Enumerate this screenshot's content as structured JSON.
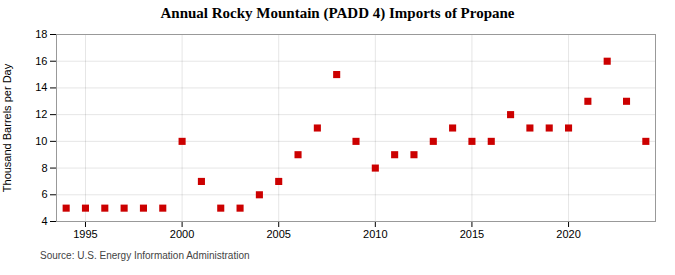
{
  "chart_data": {
    "type": "scatter",
    "title": "Annual Rocky Mountain (PADD 4) Imports of Propane",
    "ylabel": "Thousand Barrels per Day",
    "source": "Source: U.S. Energy Information Administration",
    "x": [
      1994,
      1995,
      1996,
      1997,
      1998,
      1999,
      2000,
      2001,
      2002,
      2003,
      2004,
      2005,
      2006,
      2007,
      2008,
      2009,
      2010,
      2011,
      2012,
      2013,
      2014,
      2015,
      2016,
      2017,
      2018,
      2019,
      2020,
      2021,
      2022,
      2023,
      2024
    ],
    "values": [
      5,
      5,
      5,
      5,
      5,
      5,
      10,
      7,
      5,
      5,
      6,
      7,
      9,
      11,
      15,
      10,
      8,
      9,
      9,
      10,
      11,
      10,
      10,
      12,
      11,
      11,
      11,
      13,
      16,
      13,
      10
    ],
    "xlim": [
      1993.5,
      2024.5
    ],
    "xticks": [
      1995,
      2000,
      2005,
      2010,
      2015,
      2020
    ],
    "ylim": [
      4,
      18
    ],
    "yticks": [
      4,
      6,
      8,
      10,
      12,
      14,
      16,
      18
    ],
    "color": "#cc0000",
    "marker": "square",
    "grid": true
  }
}
